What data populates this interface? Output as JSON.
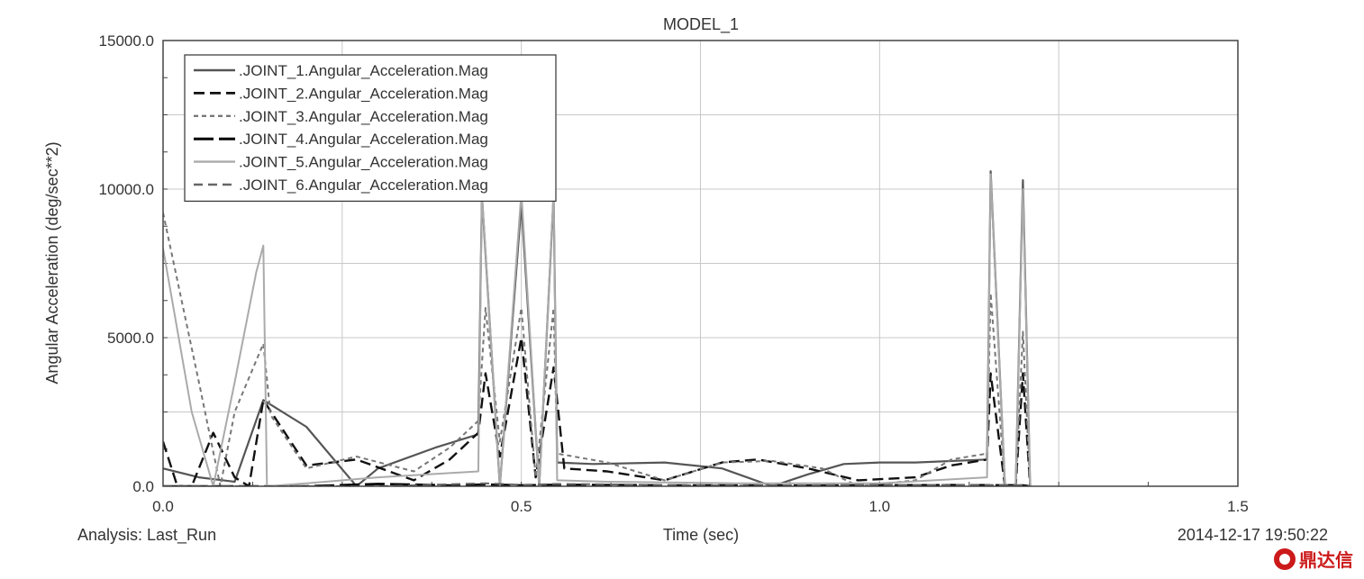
{
  "chart_data": {
    "type": "line",
    "title": "MODEL_1",
    "xlabel": "Time (sec)",
    "ylabel": "Angular Acceleration (deg/sec**2)",
    "xlim": [
      0.0,
      1.5
    ],
    "ylim": [
      0.0,
      15000.0
    ],
    "x_ticks": [
      "0.0",
      "0.5",
      "1.0",
      "1.5"
    ],
    "y_ticks": [
      "0.0",
      "5000.0",
      "10000.0",
      "15000.0"
    ],
    "grid": true,
    "legend_position": "top-left",
    "series": [
      {
        "name": ".JOINT_1.Angular_Acceleration.Mag",
        "color": "#555555",
        "dash": "solid",
        "width": 2.2,
        "points": [
          [
            0.0,
            600
          ],
          [
            0.05,
            300
          ],
          [
            0.1,
            150
          ],
          [
            0.14,
            2900
          ],
          [
            0.2,
            2000
          ],
          [
            0.27,
            0
          ],
          [
            0.3,
            600
          ],
          [
            0.38,
            1300
          ],
          [
            0.44,
            1750
          ],
          [
            0.445,
            9800
          ],
          [
            0.47,
            0
          ],
          [
            0.5,
            9500
          ],
          [
            0.525,
            0
          ],
          [
            0.545,
            9800
          ],
          [
            0.55,
            800
          ],
          [
            0.6,
            750
          ],
          [
            0.7,
            800
          ],
          [
            0.78,
            600
          ],
          [
            0.85,
            0
          ],
          [
            0.9,
            400
          ],
          [
            0.95,
            750
          ],
          [
            1.0,
            800
          ],
          [
            1.05,
            800
          ],
          [
            1.15,
            900
          ],
          [
            1.155,
            10600
          ],
          [
            1.175,
            0
          ],
          [
            1.19,
            0
          ],
          [
            1.2,
            10300
          ],
          [
            1.21,
            0
          ]
        ]
      },
      {
        "name": ".JOINT_2.Angular_Acceleration.Mag",
        "color": "#111111",
        "dash": "12,6",
        "width": 2.4,
        "points": [
          [
            0.0,
            1500
          ],
          [
            0.02,
            0
          ],
          [
            0.04,
            0
          ],
          [
            0.07,
            1800
          ],
          [
            0.1,
            300
          ],
          [
            0.12,
            0
          ],
          [
            0.14,
            2900
          ],
          [
            0.2,
            700
          ],
          [
            0.27,
            900
          ],
          [
            0.35,
            200
          ],
          [
            0.4,
            900
          ],
          [
            0.44,
            1800
          ],
          [
            0.45,
            3800
          ],
          [
            0.47,
            1000
          ],
          [
            0.5,
            5000
          ],
          [
            0.52,
            300
          ],
          [
            0.545,
            4000
          ],
          [
            0.56,
            600
          ],
          [
            0.62,
            500
          ],
          [
            0.7,
            200
          ],
          [
            0.78,
            800
          ],
          [
            0.83,
            900
          ],
          [
            0.9,
            600
          ],
          [
            0.97,
            200
          ],
          [
            1.05,
            300
          ],
          [
            1.1,
            700
          ],
          [
            1.15,
            900
          ],
          [
            1.155,
            3800
          ],
          [
            1.175,
            0
          ],
          [
            1.19,
            0
          ],
          [
            1.2,
            3800
          ],
          [
            1.21,
            0
          ]
        ]
      },
      {
        "name": ".JOINT_3.Angular_Acceleration.Mag",
        "color": "#777777",
        "dash": "5,4",
        "width": 2.0,
        "points": [
          [
            0.0,
            9200
          ],
          [
            0.05,
            3500
          ],
          [
            0.08,
            0
          ],
          [
            0.1,
            2500
          ],
          [
            0.14,
            4800
          ],
          [
            0.15,
            2400
          ],
          [
            0.2,
            600
          ],
          [
            0.27,
            1000
          ],
          [
            0.35,
            500
          ],
          [
            0.4,
            1300
          ],
          [
            0.44,
            2200
          ],
          [
            0.45,
            6000
          ],
          [
            0.47,
            1500
          ],
          [
            0.5,
            6000
          ],
          [
            0.52,
            300
          ],
          [
            0.545,
            6000
          ],
          [
            0.55,
            1100
          ],
          [
            0.62,
            800
          ],
          [
            0.7,
            200
          ],
          [
            0.78,
            800
          ],
          [
            0.85,
            850
          ],
          [
            0.92,
            600
          ],
          [
            0.97,
            0
          ],
          [
            1.05,
            200
          ],
          [
            1.1,
            900
          ],
          [
            1.15,
            1100
          ],
          [
            1.155,
            6500
          ],
          [
            1.175,
            0
          ],
          [
            1.19,
            0
          ],
          [
            1.2,
            5200
          ],
          [
            1.21,
            0
          ]
        ]
      },
      {
        "name": ".JOINT_4.Angular_Acceleration.Mag",
        "color": "#000000",
        "dash": "22,6",
        "width": 2.6,
        "points": [
          [
            0.0,
            0
          ],
          [
            0.2,
            0
          ],
          [
            0.3,
            80
          ],
          [
            0.4,
            30
          ],
          [
            0.45,
            60
          ],
          [
            0.5,
            30
          ],
          [
            0.55,
            50
          ],
          [
            0.7,
            30
          ],
          [
            0.9,
            20
          ],
          [
            1.1,
            40
          ],
          [
            1.2,
            30
          ],
          [
            1.21,
            0
          ]
        ]
      },
      {
        "name": ".JOINT_5.Angular_Acceleration.Mag",
        "color": "#aaaaaa",
        "dash": "solid",
        "width": 2.0,
        "points": [
          [
            0.0,
            8000
          ],
          [
            0.04,
            2500
          ],
          [
            0.07,
            0
          ],
          [
            0.1,
            3500
          ],
          [
            0.13,
            7200
          ],
          [
            0.14,
            8100
          ],
          [
            0.145,
            0
          ],
          [
            0.2,
            100
          ],
          [
            0.3,
            300
          ],
          [
            0.44,
            500
          ],
          [
            0.445,
            9900
          ],
          [
            0.47,
            0
          ],
          [
            0.5,
            9900
          ],
          [
            0.525,
            0
          ],
          [
            0.545,
            9900
          ],
          [
            0.55,
            200
          ],
          [
            0.62,
            150
          ],
          [
            0.8,
            100
          ],
          [
            1.0,
            100
          ],
          [
            1.15,
            300
          ],
          [
            1.155,
            10500
          ],
          [
            1.175,
            0
          ],
          [
            1.19,
            0
          ],
          [
            1.2,
            10000
          ],
          [
            1.21,
            0
          ]
        ]
      },
      {
        "name": ".JOINT_6.Angular_Acceleration.Mag",
        "color": "#666666",
        "dash": "10,6",
        "width": 2.0,
        "points": [
          [
            0.0,
            0
          ],
          [
            0.2,
            0
          ],
          [
            0.3,
            0
          ],
          [
            0.45,
            100
          ],
          [
            0.5,
            50
          ],
          [
            0.55,
            80
          ],
          [
            0.8,
            20
          ],
          [
            1.0,
            50
          ],
          [
            1.2,
            40
          ],
          [
            1.21,
            0
          ]
        ]
      }
    ]
  },
  "footer": {
    "analysis": "Analysis:  Last_Run",
    "timestamp": "2014-12-17 19:50:22"
  },
  "watermark": "鼎达信"
}
